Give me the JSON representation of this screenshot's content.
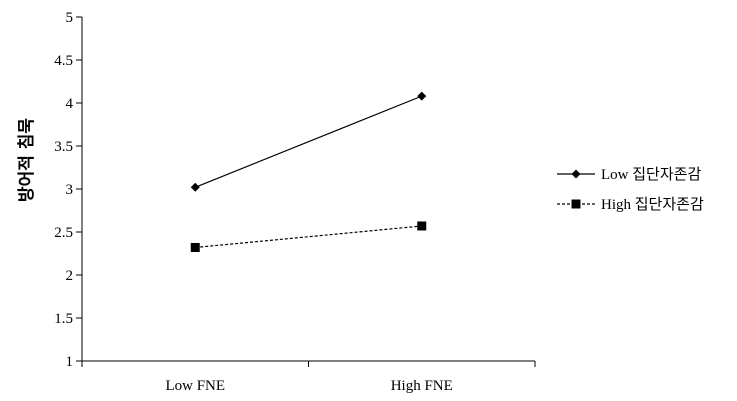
{
  "chart_data": {
    "type": "line",
    "categories": [
      "Low FNE",
      "High FNE"
    ],
    "series": [
      {
        "name": "Low 집단자존감",
        "values": [
          3.02,
          4.08
        ],
        "marker": "diamond",
        "line_style": "solid"
      },
      {
        "name": "High 집단자존감",
        "values": [
          2.32,
          2.57
        ],
        "marker": "square",
        "line_style": "dotted"
      }
    ],
    "ylabel": "방어적 침묵",
    "ylim": [
      1,
      5
    ],
    "yticks": [
      "1",
      "1.5",
      "2",
      "2.5",
      "3",
      "3.5",
      "4",
      "4.5",
      "5"
    ],
    "grid": false,
    "legend_position": "right",
    "line_color": "#000000"
  }
}
